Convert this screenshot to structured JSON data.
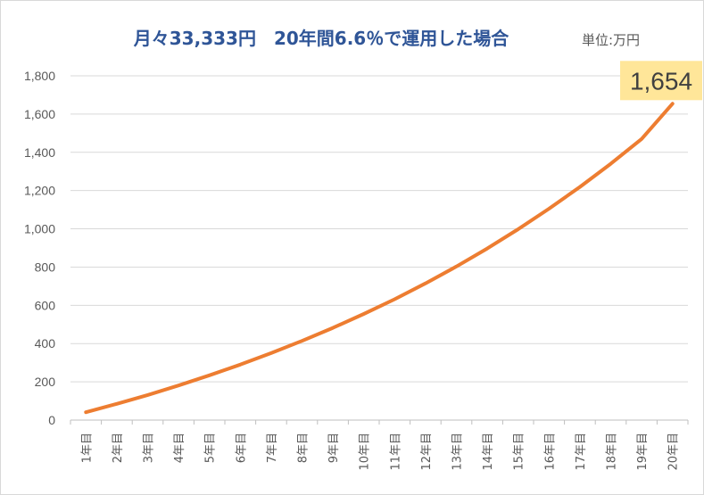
{
  "chart_data": {
    "type": "line",
    "title": "月々33,333円　20年間6.6％で運用した場合",
    "unit_label": "単位:万円",
    "categories": [
      "1年目",
      "2年目",
      "3年目",
      "4年目",
      "5年目",
      "6年目",
      "7年目",
      "8年目",
      "9年目",
      "10年目",
      "11年目",
      "12年目",
      "13年目",
      "14年目",
      "15年目",
      "16年目",
      "17年目",
      "18年目",
      "19年目",
      "20年目"
    ],
    "series": [
      {
        "values": [
          41,
          85,
          131,
          181,
          234,
          290,
          350,
          414,
          482,
          555,
          632,
          715,
          803,
          897,
          998,
          1105,
          1219,
          1340,
          1470,
          1654
        ]
      }
    ],
    "data_label": {
      "index": 19,
      "text": "1,654"
    },
    "yticks": [
      "0",
      "200",
      "400",
      "600",
      "800",
      "1,000",
      "1,200",
      "1,400",
      "1,600",
      "1,800"
    ],
    "ylim": [
      0,
      1800
    ],
    "grid": true,
    "legend": "none",
    "line_color": "#ed7d31",
    "label_bg": "#ffe699",
    "title_color": "#2f5597"
  }
}
